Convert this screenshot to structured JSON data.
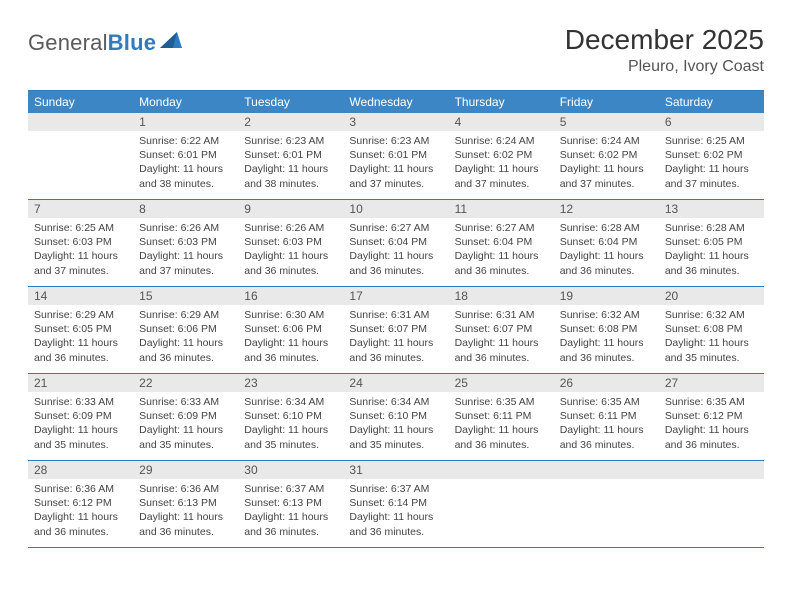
{
  "logo": {
    "text_gray": "General",
    "text_blue": "Blue"
  },
  "title": "December 2025",
  "location": "Pleuro, Ivory Coast",
  "colors": {
    "header_bg": "#3d86c6",
    "border": "#2f7bbf",
    "date_bg": "#e9e9e9",
    "text": "#333333"
  },
  "day_names": [
    "Sunday",
    "Monday",
    "Tuesday",
    "Wednesday",
    "Thursday",
    "Friday",
    "Saturday"
  ],
  "weeks": [
    [
      {
        "date": "",
        "lines": []
      },
      {
        "date": "1",
        "lines": [
          "Sunrise: 6:22 AM",
          "Sunset: 6:01 PM",
          "Daylight: 11 hours",
          "and 38 minutes."
        ]
      },
      {
        "date": "2",
        "lines": [
          "Sunrise: 6:23 AM",
          "Sunset: 6:01 PM",
          "Daylight: 11 hours",
          "and 38 minutes."
        ]
      },
      {
        "date": "3",
        "lines": [
          "Sunrise: 6:23 AM",
          "Sunset: 6:01 PM",
          "Daylight: 11 hours",
          "and 37 minutes."
        ]
      },
      {
        "date": "4",
        "lines": [
          "Sunrise: 6:24 AM",
          "Sunset: 6:02 PM",
          "Daylight: 11 hours",
          "and 37 minutes."
        ]
      },
      {
        "date": "5",
        "lines": [
          "Sunrise: 6:24 AM",
          "Sunset: 6:02 PM",
          "Daylight: 11 hours",
          "and 37 minutes."
        ]
      },
      {
        "date": "6",
        "lines": [
          "Sunrise: 6:25 AM",
          "Sunset: 6:02 PM",
          "Daylight: 11 hours",
          "and 37 minutes."
        ]
      }
    ],
    [
      {
        "date": "7",
        "lines": [
          "Sunrise: 6:25 AM",
          "Sunset: 6:03 PM",
          "Daylight: 11 hours",
          "and 37 minutes."
        ]
      },
      {
        "date": "8",
        "lines": [
          "Sunrise: 6:26 AM",
          "Sunset: 6:03 PM",
          "Daylight: 11 hours",
          "and 37 minutes."
        ]
      },
      {
        "date": "9",
        "lines": [
          "Sunrise: 6:26 AM",
          "Sunset: 6:03 PM",
          "Daylight: 11 hours",
          "and 36 minutes."
        ]
      },
      {
        "date": "10",
        "lines": [
          "Sunrise: 6:27 AM",
          "Sunset: 6:04 PM",
          "Daylight: 11 hours",
          "and 36 minutes."
        ]
      },
      {
        "date": "11",
        "lines": [
          "Sunrise: 6:27 AM",
          "Sunset: 6:04 PM",
          "Daylight: 11 hours",
          "and 36 minutes."
        ]
      },
      {
        "date": "12",
        "lines": [
          "Sunrise: 6:28 AM",
          "Sunset: 6:04 PM",
          "Daylight: 11 hours",
          "and 36 minutes."
        ]
      },
      {
        "date": "13",
        "lines": [
          "Sunrise: 6:28 AM",
          "Sunset: 6:05 PM",
          "Daylight: 11 hours",
          "and 36 minutes."
        ]
      }
    ],
    [
      {
        "date": "14",
        "lines": [
          "Sunrise: 6:29 AM",
          "Sunset: 6:05 PM",
          "Daylight: 11 hours",
          "and 36 minutes."
        ]
      },
      {
        "date": "15",
        "lines": [
          "Sunrise: 6:29 AM",
          "Sunset: 6:06 PM",
          "Daylight: 11 hours",
          "and 36 minutes."
        ]
      },
      {
        "date": "16",
        "lines": [
          "Sunrise: 6:30 AM",
          "Sunset: 6:06 PM",
          "Daylight: 11 hours",
          "and 36 minutes."
        ]
      },
      {
        "date": "17",
        "lines": [
          "Sunrise: 6:31 AM",
          "Sunset: 6:07 PM",
          "Daylight: 11 hours",
          "and 36 minutes."
        ]
      },
      {
        "date": "18",
        "lines": [
          "Sunrise: 6:31 AM",
          "Sunset: 6:07 PM",
          "Daylight: 11 hours",
          "and 36 minutes."
        ]
      },
      {
        "date": "19",
        "lines": [
          "Sunrise: 6:32 AM",
          "Sunset: 6:08 PM",
          "Daylight: 11 hours",
          "and 36 minutes."
        ]
      },
      {
        "date": "20",
        "lines": [
          "Sunrise: 6:32 AM",
          "Sunset: 6:08 PM",
          "Daylight: 11 hours",
          "and 35 minutes."
        ]
      }
    ],
    [
      {
        "date": "21",
        "lines": [
          "Sunrise: 6:33 AM",
          "Sunset: 6:09 PM",
          "Daylight: 11 hours",
          "and 35 minutes."
        ]
      },
      {
        "date": "22",
        "lines": [
          "Sunrise: 6:33 AM",
          "Sunset: 6:09 PM",
          "Daylight: 11 hours",
          "and 35 minutes."
        ]
      },
      {
        "date": "23",
        "lines": [
          "Sunrise: 6:34 AM",
          "Sunset: 6:10 PM",
          "Daylight: 11 hours",
          "and 35 minutes."
        ]
      },
      {
        "date": "24",
        "lines": [
          "Sunrise: 6:34 AM",
          "Sunset: 6:10 PM",
          "Daylight: 11 hours",
          "and 35 minutes."
        ]
      },
      {
        "date": "25",
        "lines": [
          "Sunrise: 6:35 AM",
          "Sunset: 6:11 PM",
          "Daylight: 11 hours",
          "and 36 minutes."
        ]
      },
      {
        "date": "26",
        "lines": [
          "Sunrise: 6:35 AM",
          "Sunset: 6:11 PM",
          "Daylight: 11 hours",
          "and 36 minutes."
        ]
      },
      {
        "date": "27",
        "lines": [
          "Sunrise: 6:35 AM",
          "Sunset: 6:12 PM",
          "Daylight: 11 hours",
          "and 36 minutes."
        ]
      }
    ],
    [
      {
        "date": "28",
        "lines": [
          "Sunrise: 6:36 AM",
          "Sunset: 6:12 PM",
          "Daylight: 11 hours",
          "and 36 minutes."
        ]
      },
      {
        "date": "29",
        "lines": [
          "Sunrise: 6:36 AM",
          "Sunset: 6:13 PM",
          "Daylight: 11 hours",
          "and 36 minutes."
        ]
      },
      {
        "date": "30",
        "lines": [
          "Sunrise: 6:37 AM",
          "Sunset: 6:13 PM",
          "Daylight: 11 hours",
          "and 36 minutes."
        ]
      },
      {
        "date": "31",
        "lines": [
          "Sunrise: 6:37 AM",
          "Sunset: 6:14 PM",
          "Daylight: 11 hours",
          "and 36 minutes."
        ]
      },
      {
        "date": "",
        "lines": []
      },
      {
        "date": "",
        "lines": []
      },
      {
        "date": "",
        "lines": []
      }
    ]
  ]
}
